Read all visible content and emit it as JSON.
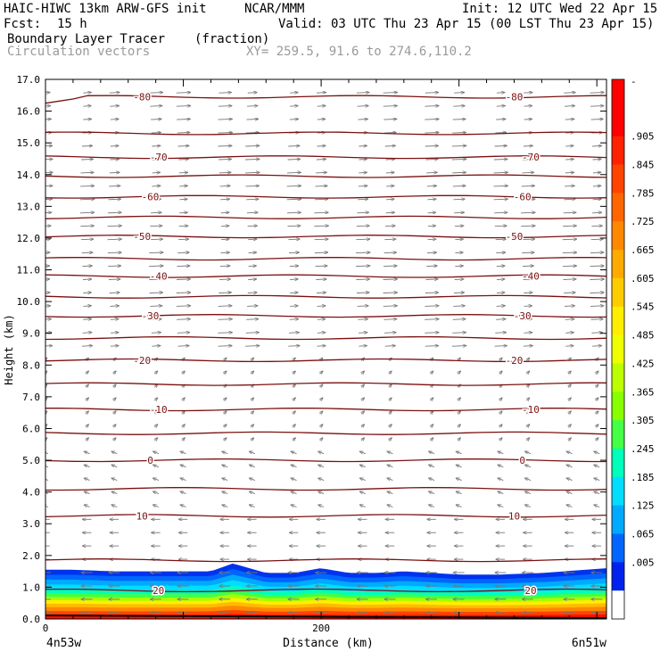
{
  "header": {
    "title": "HAIC-HIWC 13km ARW-GFS init",
    "org": "NCAR/MMM",
    "init": "Init: 12 UTC Wed 22 Apr 15",
    "fcst_label": "Fcst:",
    "fcst_value": "15 h",
    "valid": "Valid: 03 UTC Thu 23 Apr 15 (00 LST Thu 23 Apr 15)",
    "field_name": "Boundary Layer Tracer",
    "field_units": "(fraction)",
    "overlay_name": "Circulation vectors",
    "xy_text": "XY= 259.5, 91.6 to 274.6,110.2"
  },
  "chart_data": {
    "type": "heatmap",
    "title": "Boundary Layer Tracer",
    "xlabel": "Distance (km)",
    "ylabel": "Height (km)",
    "xlim": [
      0,
      407
    ],
    "ylim": [
      0.0,
      17.0
    ],
    "x_ticks": [
      0,
      200
    ],
    "x_tick_labels": [
      "0",
      "200"
    ],
    "x_end_labels": [
      "4n53w",
      "6n51w"
    ],
    "y_ticks": [
      0.0,
      1.0,
      2.0,
      3.0,
      4.0,
      5.0,
      6.0,
      7.0,
      8.0,
      9.0,
      10.0,
      11.0,
      12.0,
      13.0,
      14.0,
      15.0,
      16.0,
      17.0
    ],
    "y_tick_labels": [
      "0.0",
      "1.0",
      "2.0",
      "3.0",
      "4.0",
      "5.0",
      "6.0",
      "7.0",
      "8.0",
      "9.0",
      "10.0",
      "11.0",
      "12.0",
      "13.0",
      "14.0",
      "15.0",
      "16.0",
      "17.0"
    ],
    "colorbar": {
      "labels": [
        "-",
        ".905",
        ".845",
        ".785",
        ".725",
        ".665",
        ".605",
        ".545",
        ".485",
        ".425",
        ".365",
        ".305",
        ".245",
        ".185",
        ".125",
        ".065",
        ".005"
      ],
      "colors": [
        "#ff0000",
        "#ff0000",
        "#ff2200",
        "#ff4400",
        "#ff6600",
        "#ff8800",
        "#ffaa00",
        "#ffcc00",
        "#ffee00",
        "#eeff00",
        "#bbff00",
        "#88ff00",
        "#44ff44",
        "#00ffbb",
        "#00ddff",
        "#00aaff",
        "#0066ff",
        "#0022ee",
        "#ffffff"
      ]
    },
    "tracer_layer": {
      "surface_value_approx": 1.0,
      "top_height_km": [
        1.55,
        1.55,
        1.5,
        1.5,
        1.5,
        1.5,
        1.75,
        1.45,
        1.45,
        1.6,
        1.45,
        1.45,
        1.5,
        1.45,
        1.4,
        1.4,
        1.45,
        1.6
      ],
      "top_x_km": [
        0,
        20,
        50,
        80,
        100,
        120,
        136,
        160,
        180,
        200,
        220,
        240,
        260,
        280,
        300,
        330,
        360,
        407
      ]
    },
    "temperature_contours": {
      "units": "degC",
      "levels": [
        {
          "value": -80,
          "height_km": 16.45,
          "label": "-80"
        },
        {
          "value": -75,
          "height_km": 15.3,
          "label": ""
        },
        {
          "value": -70,
          "height_km": 14.55,
          "label": "-70"
        },
        {
          "value": -65,
          "height_km": 13.95,
          "label": ""
        },
        {
          "value": -60,
          "height_km": 13.3,
          "label": "-60"
        },
        {
          "value": -55,
          "height_km": 12.65,
          "label": ""
        },
        {
          "value": -50,
          "height_km": 12.05,
          "label": "-50"
        },
        {
          "value": -45,
          "height_km": 11.35,
          "label": ""
        },
        {
          "value": -40,
          "height_km": 10.8,
          "label": "-40"
        },
        {
          "value": -35,
          "height_km": 10.15,
          "label": ""
        },
        {
          "value": -30,
          "height_km": 9.55,
          "label": "-30"
        },
        {
          "value": -25,
          "height_km": 8.85,
          "label": ""
        },
        {
          "value": -20,
          "height_km": 8.15,
          "label": "-20"
        },
        {
          "value": -15,
          "height_km": 7.4,
          "label": ""
        },
        {
          "value": -10,
          "height_km": 6.6,
          "label": "-10"
        },
        {
          "value": -5,
          "height_km": 5.85,
          "label": ""
        },
        {
          "value": 0,
          "height_km": 5.0,
          "label": "0"
        },
        {
          "value": 5,
          "height_km": 4.1,
          "label": ""
        },
        {
          "value": 10,
          "height_km": 3.25,
          "label": "10"
        },
        {
          "value": 15,
          "height_km": 1.85,
          "label": ""
        },
        {
          "value": 20,
          "height_km": 0.9,
          "label": "20"
        }
      ]
    },
    "vectors": {
      "description": "circulation vectors; westerly above ~9 km, weak below, easterly in lowest km",
      "columns_x_km": [
        0,
        25,
        50,
        75,
        100,
        125,
        150,
        175,
        200,
        225,
        250,
        275,
        300,
        325,
        350,
        375,
        400
      ]
    }
  }
}
